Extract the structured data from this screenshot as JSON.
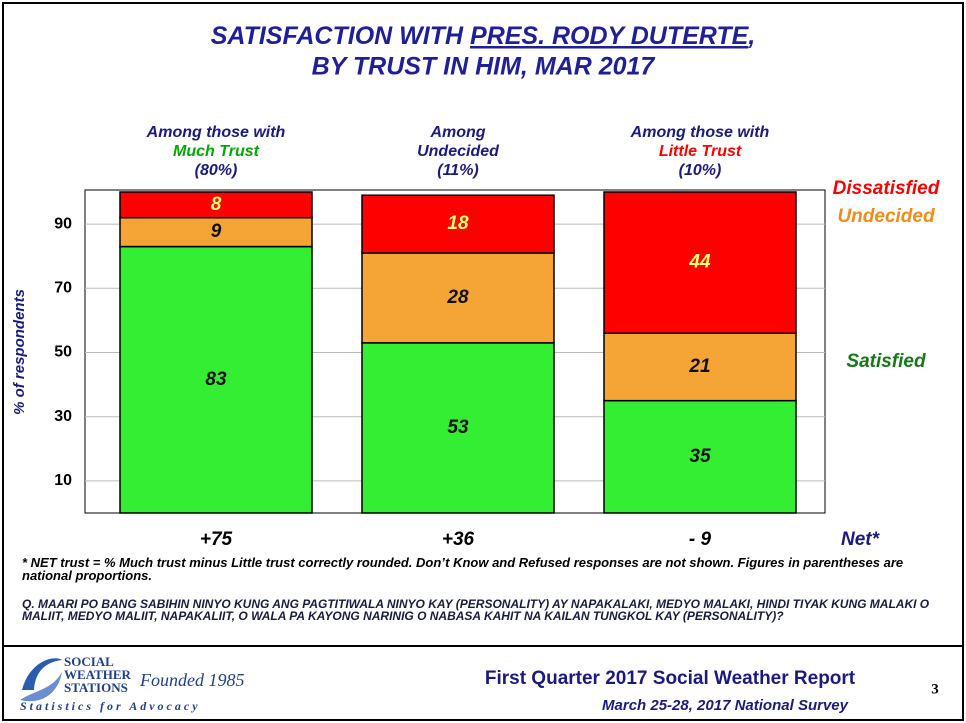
{
  "chart_data": {
    "type": "stacked_bar",
    "title": [
      "SATISFACTION WITH",
      "PRES. RODY DUTERTE",
      ",",
      "BY TRUST IN HIM, MAR 2017"
    ],
    "ylabel": "% of respondents",
    "categories": [
      [
        "Among those with",
        "Much Trust",
        "(80%)"
      ],
      [
        "Among",
        "Undecided",
        "(11%)"
      ],
      [
        "Among those with",
        "Little Trust",
        "(10%)"
      ]
    ],
    "category_highlight_colors": [
      "#00aa00",
      "#1a1a80",
      "#ff0000"
    ],
    "series": [
      {
        "name": "Satisfied",
        "color": "#33ee33",
        "name_color": "#157a15",
        "label_color": "#111111",
        "values": [
          83,
          53,
          35
        ]
      },
      {
        "name": "Undecided",
        "color": "#f4a536",
        "name_color": "#f08c1a",
        "label_color": "#111111",
        "values": [
          9,
          28,
          21
        ]
      },
      {
        "name": "Dissatisfied",
        "color": "#ff0000",
        "name_color": "#ff0000",
        "label_color": "#ffff66",
        "values": [
          8,
          18,
          44
        ]
      }
    ],
    "net": {
      "label": "Net*",
      "values": [
        75,
        36,
        -9
      ],
      "value_labels": [
        "+75",
        "+36",
        "- 9"
      ]
    },
    "ylim": [
      0,
      100
    ],
    "yticks": [
      10,
      30,
      50,
      70,
      90
    ],
    "grid": true
  },
  "footnotes": [
    "* NET trust = % Much trust minus Little trust correctly rounded. Don’t Know and Refused responses are not shown. Figures in parentheses are national proportions.",
    "Q. MAARI PO BANG SABIHIN NINYO KUNG ANG PAGTITIWALA NINYO KAY (PERSONALITY) AY NAPAKALAKI, MEDYO MALAKI, HINDI TIYAK KUNG MALAKI O MALIIT, MEDYO MALIIT, NAPAKALIIT, O WALA PA KAYONG NARINIG O NABASA KAHIT NA KAILAN TUNGKOL KAY (PERSONALITY)?"
  ],
  "footer": {
    "logo": [
      "SOCIAL",
      "WEATHER",
      "STATIONS"
    ],
    "founded": "Founded 1985",
    "tagline": "Statistics for Advocacy",
    "report": "First Quarter 2017 Social Weather Report",
    "survey": "March 25-28, 2017 National Survey",
    "page": "3"
  }
}
